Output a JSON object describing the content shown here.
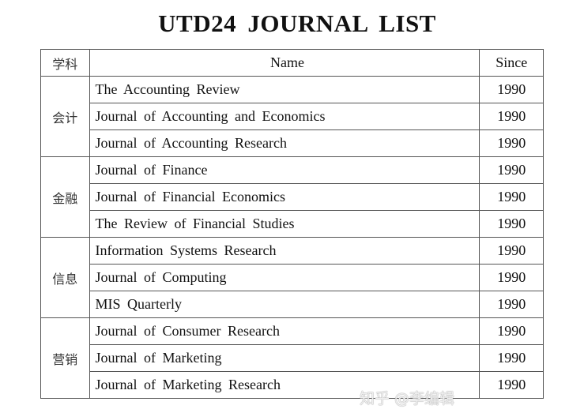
{
  "title": "UTD24  JOURNAL  LIST",
  "headers": {
    "subject": "学科",
    "name": "Name",
    "since": "Since"
  },
  "groups": [
    {
      "subject": "会计",
      "journals": [
        {
          "name": "The Accounting Review",
          "since": "1990"
        },
        {
          "name": "Journal of Accounting and Economics",
          "since": "1990"
        },
        {
          "name": "Journal of Accounting Research",
          "since": "1990"
        }
      ]
    },
    {
      "subject": "金融",
      "journals": [
        {
          "name": "Journal of Finance",
          "since": "1990"
        },
        {
          "name": "Journal of Financial Economics",
          "since": "1990"
        },
        {
          "name": "The Review of Financial Studies",
          "since": "1990"
        }
      ]
    },
    {
      "subject": "信息",
      "journals": [
        {
          "name": "Information Systems Research",
          "since": "1990"
        },
        {
          "name": "Journal of Computing",
          "since": "1990"
        },
        {
          "name": "MIS Quarterly",
          "since": "1990"
        }
      ]
    },
    {
      "subject": "营销",
      "journals": [
        {
          "name": "Journal of Consumer Research",
          "since": "1990"
        },
        {
          "name": "Journal of Marketing",
          "since": "1990"
        },
        {
          "name": "Journal of Marketing Research",
          "since": "1990"
        }
      ]
    }
  ],
  "watermark": "知乎 @李编辑"
}
